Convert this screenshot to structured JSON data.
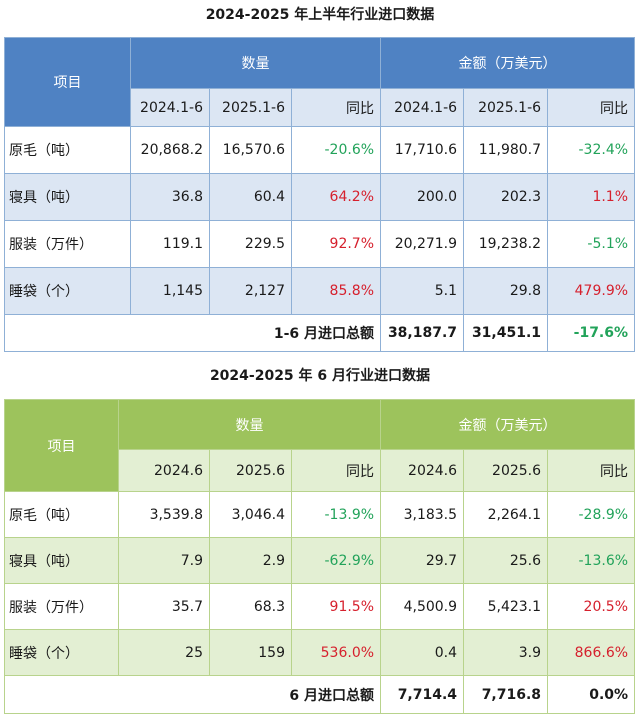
{
  "table1": {
    "title": "2024-2025 年上半年行业进口数据",
    "item_header": "项目",
    "qty_header": "数量",
    "amt_header": "金额（万美元）",
    "sub_headers": [
      "2024.1-6",
      "2025.1-6",
      "同比",
      "2024.1-6",
      "2025.1-6",
      "同比"
    ],
    "rows": [
      {
        "name": "原毛（吨）",
        "q1": "20,868.2",
        "q2": "16,570.6",
        "qyoy": "-20.6%",
        "a1": "17,710.6",
        "a2": "11,980.7",
        "ayoy": "-32.4%"
      },
      {
        "name": "寝具（吨）",
        "q1": "36.8",
        "q2": "60.4",
        "qyoy": "64.2%",
        "a1": "200.0",
        "a2": "202.3",
        "ayoy": "1.1%"
      },
      {
        "name": "服装（万件）",
        "q1": "119.1",
        "q2": "229.5",
        "qyoy": "92.7%",
        "a1": "20,271.9",
        "a2": "19,238.2",
        "ayoy": "-5.1%"
      },
      {
        "name": "睡袋（个）",
        "q1": "1,145",
        "q2": "2,127",
        "qyoy": "85.8%",
        "a1": "5.1",
        "a2": "29.8",
        "ayoy": "479.9%"
      }
    ],
    "total": {
      "label": "1-6 月进口总额",
      "a1": "38,187.7",
      "a2": "31,451.1",
      "yoy": "-17.6%"
    }
  },
  "table2": {
    "title": "2024-2025 年 6 月行业进口数据",
    "item_header": "项目",
    "qty_header": "数量",
    "amt_header": "金额（万美元）",
    "sub_headers": [
      "2024.6",
      "2025.6",
      "同比",
      "2024.6",
      "2025.6",
      "同比"
    ],
    "rows": [
      {
        "name": "原毛（吨）",
        "q1": "3,539.8",
        "q2": "3,046.4",
        "qyoy": "-13.9%",
        "a1": "3,183.5",
        "a2": "2,264.1",
        "ayoy": "-28.9%"
      },
      {
        "name": "寝具（吨）",
        "q1": "7.9",
        "q2": "2.9",
        "qyoy": "-62.9%",
        "a1": "29.7",
        "a2": "25.6",
        "ayoy": "-13.6%"
      },
      {
        "name": "服装（万件）",
        "q1": "35.7",
        "q2": "68.3",
        "qyoy": "91.5%",
        "a1": "4,500.9",
        "a2": "5,423.1",
        "ayoy": "20.5%"
      },
      {
        "name": "睡袋（个）",
        "q1": "25",
        "q2": "159",
        "qyoy": "536.0%",
        "a1": "0.4",
        "a2": "3.9",
        "ayoy": "866.6%"
      }
    ],
    "total": {
      "label": "6 月进口总额",
      "a1": "7,714.4",
      "a2": "7,716.8",
      "yoy": "0.0%"
    }
  },
  "colors": {
    "increase": "#d6202d",
    "decrease": "#22a35a",
    "table1_header": "#4f82c3",
    "table1_band": "#dce6f3",
    "table2_header": "#9dc35c",
    "table2_band": "#e3efd3"
  }
}
